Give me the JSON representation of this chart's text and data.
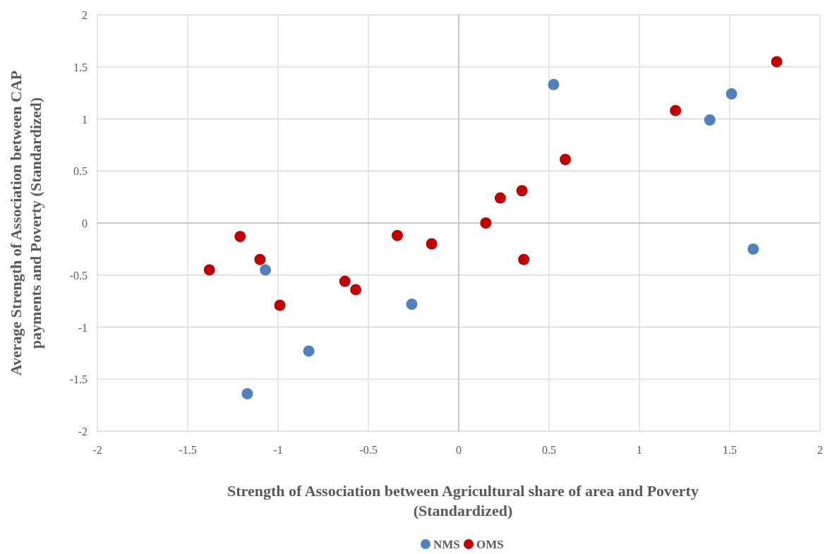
{
  "chart_data": {
    "type": "scatter",
    "xlabel": "Strength of Association between Agricultural share of area and Poverty (Standardized)",
    "ylabel": "Average Strength of Association between CAP payments and Poverty (Standardized)",
    "xlim": [
      -2,
      2
    ],
    "ylim": [
      -2,
      2
    ],
    "xticks": [
      -2,
      -1.5,
      -1,
      -0.5,
      0,
      0.5,
      1,
      1.5,
      2
    ],
    "yticks": [
      -2,
      -1.5,
      -1,
      -0.5,
      0,
      0.5,
      1,
      1.5,
      2
    ],
    "grid": true,
    "legend": "bottom",
    "marker": "circle",
    "series": [
      {
        "name": "NMS",
        "color": "#4f81bd",
        "x": [
          0.525,
          1.51,
          1.39,
          1.63,
          -1.07,
          -0.26,
          -0.83,
          -1.17
        ],
        "values": [
          1.33,
          1.24,
          0.99,
          -0.25,
          -0.45,
          -0.78,
          -1.23,
          -1.64
        ]
      },
      {
        "name": "OMS",
        "color": "#c00000",
        "x": [
          1.76,
          1.2,
          0.59,
          0.23,
          0.35,
          0.15,
          0.36,
          -0.15,
          -0.34,
          -0.63,
          -0.57,
          -0.99,
          -1.1,
          -1.21,
          -1.38
        ],
        "values": [
          1.55,
          1.08,
          0.61,
          0.24,
          0.31,
          0,
          -0.35,
          -0.2,
          -0.12,
          -0.56,
          -0.64,
          -0.79,
          -0.35,
          -0.13,
          -0.45
        ]
      }
    ]
  }
}
